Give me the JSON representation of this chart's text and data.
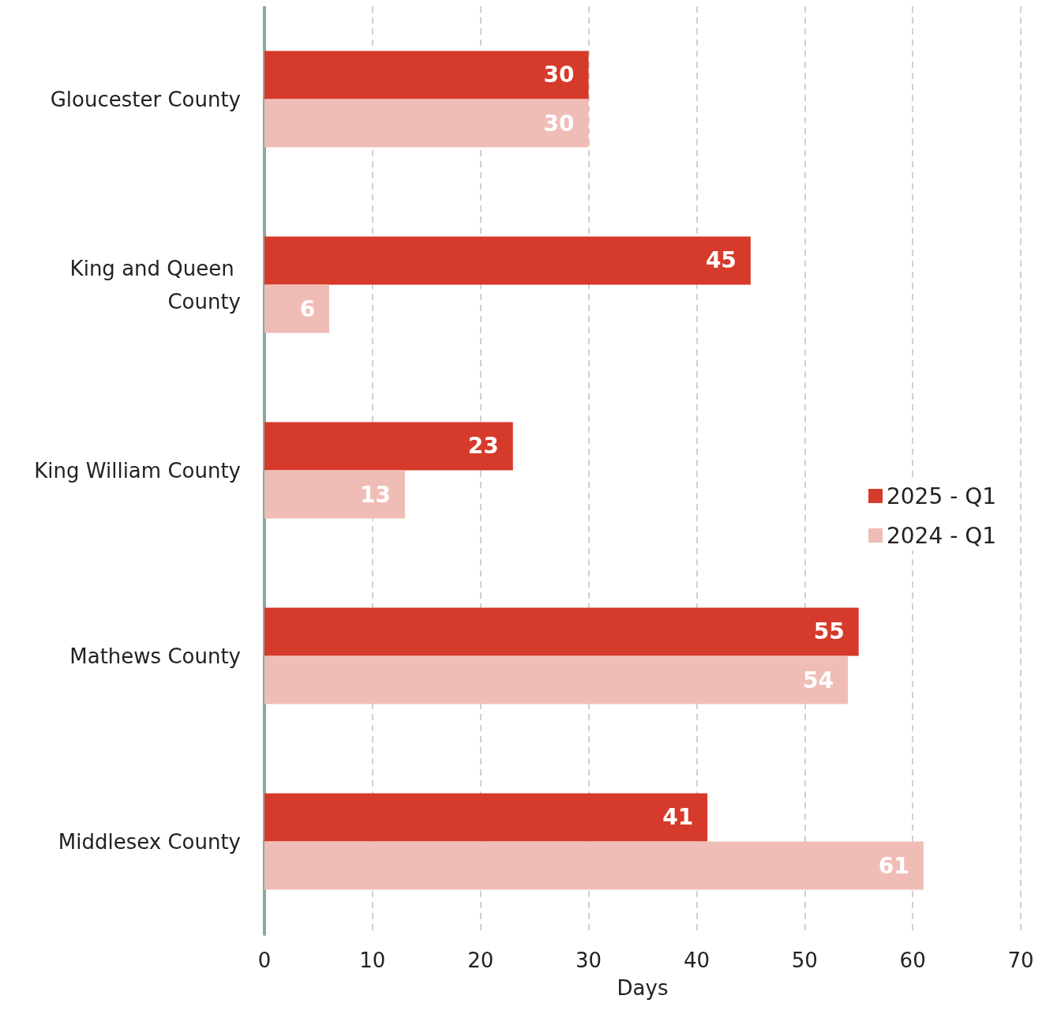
{
  "chart_data": {
    "type": "bar",
    "orientation": "horizontal",
    "xlabel": "Days",
    "categories": [
      "Gloucester County",
      "King and Queen County",
      "King William County",
      "Mathews County",
      "Middlesex County"
    ],
    "series": [
      {
        "name": "2025 - Q1",
        "color": "#d63a2a",
        "values": [
          30,
          45,
          23,
          55,
          41
        ]
      },
      {
        "name": "2024 - Q1",
        "color": "#f0bdb6",
        "values": [
          30,
          6,
          13,
          54,
          61
        ]
      }
    ],
    "xlim": [
      0,
      70
    ],
    "xticks": [
      0,
      10,
      20,
      30,
      40,
      50,
      60,
      70
    ],
    "grid": "x",
    "legend": "right",
    "data_labels": true
  }
}
